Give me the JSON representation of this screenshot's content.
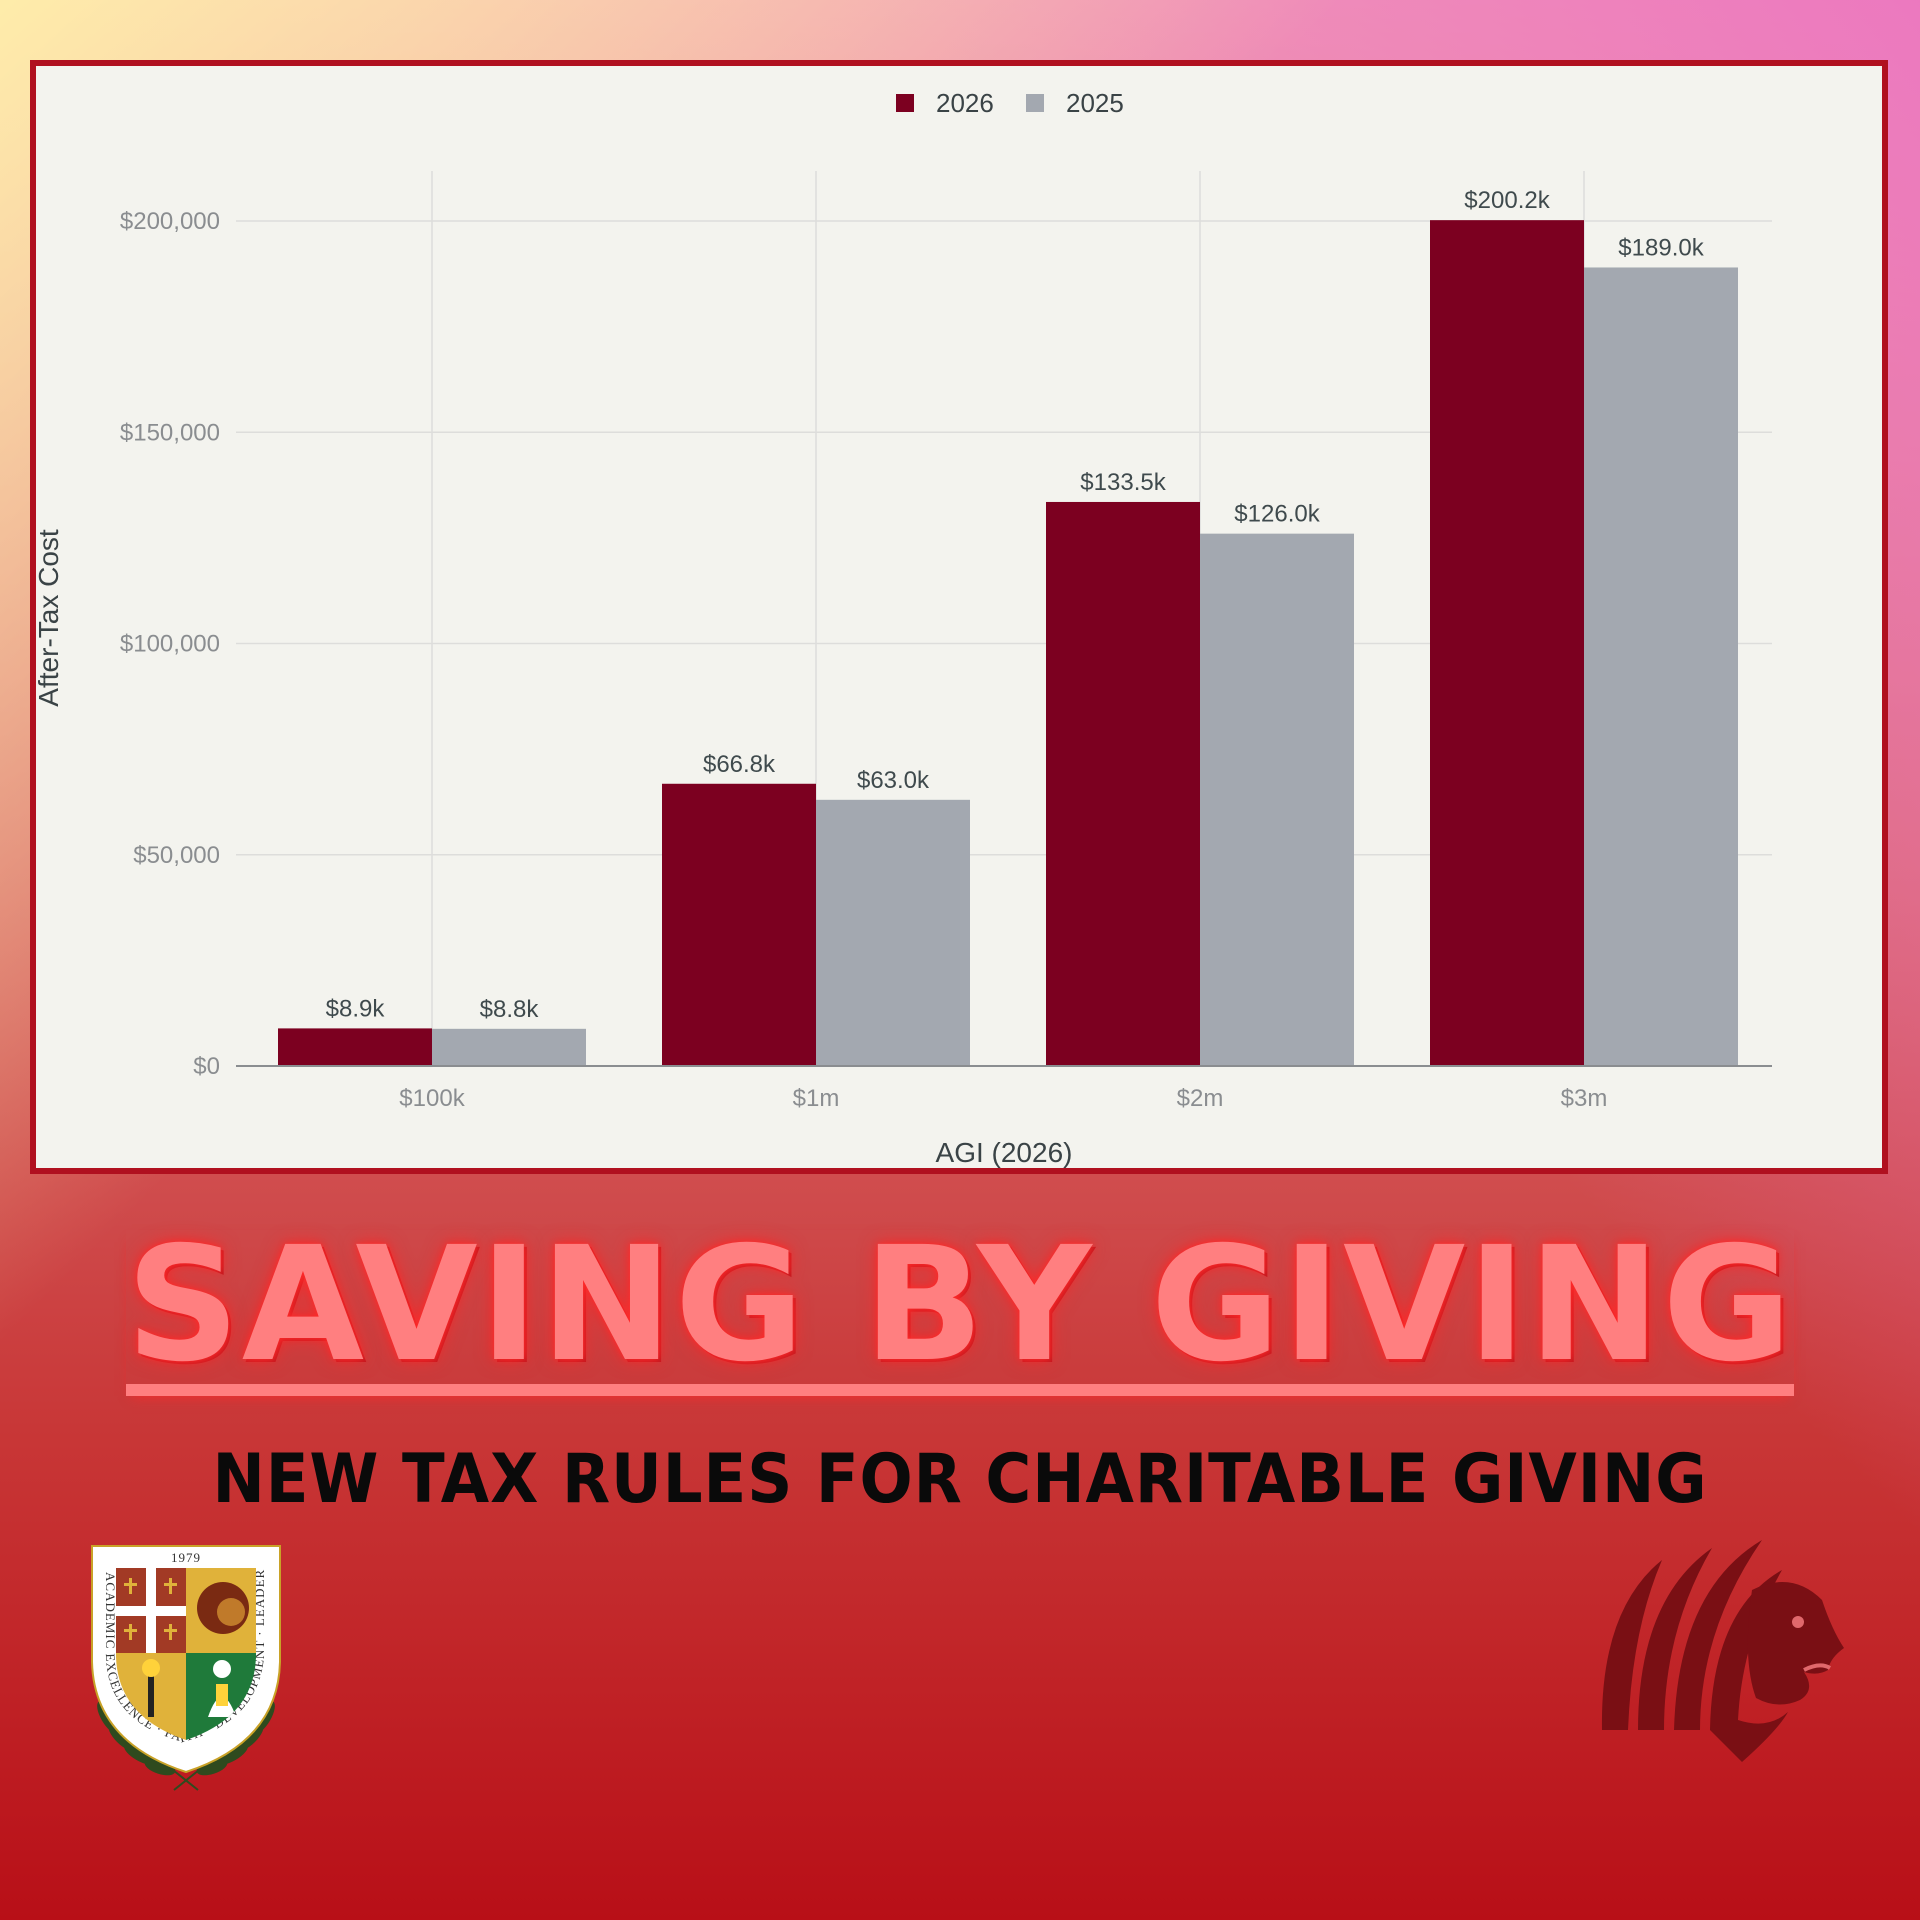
{
  "chart_data": {
    "type": "bar",
    "title": "",
    "categories": [
      "$100k",
      "$1m",
      "$2m",
      "$3m"
    ],
    "series": [
      {
        "name": "2026",
        "values": [
          8900,
          66800,
          133500,
          200200
        ],
        "labels": [
          "$8.9k",
          "$66.8k",
          "$133.5k",
          "$200.2k"
        ],
        "color": "#7c0020"
      },
      {
        "name": "2025",
        "values": [
          8800,
          63000,
          126000,
          189000
        ],
        "labels": [
          "$8.8k",
          "$63.0k",
          "$126.0k",
          "$189.0k"
        ],
        "color": "#a3a8b0"
      }
    ],
    "xlabel": "AGI (2026)",
    "ylabel": "After-Tax Cost",
    "ylim": [
      0,
      200000
    ],
    "yticks": [
      0,
      50000,
      100000,
      150000,
      200000
    ],
    "ytick_labels": [
      "$0",
      "$50,000",
      "$100,000",
      "$150,000",
      "$200,000"
    ],
    "grid": true,
    "legend": "top-center"
  },
  "headline": "SAVING BY GIVING",
  "subheadline": "NEW TAX RULES FOR CHARITABLE GIVING",
  "crest": {
    "year": "1979",
    "motto": "ACADEMIC EXCELLENCE · FAITH · DEVELOPMENT · LEADERSHIP"
  },
  "colors": {
    "brand_red": "#b0101f",
    "headline_pink": "#ff7f80",
    "lion_maroon": "#7a0f14"
  }
}
